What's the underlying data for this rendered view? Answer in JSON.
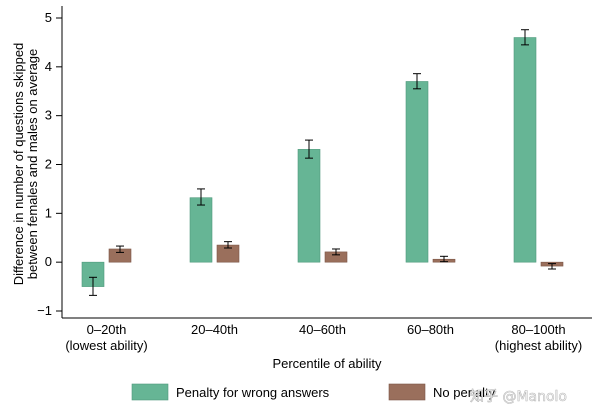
{
  "chart_data": {
    "type": "bar",
    "title": "",
    "xlabel": "Percentile of ability",
    "ylabel_lines": [
      "Difference in number of questions skipped",
      "between females and males on average"
    ],
    "categories": [
      [
        "0–20th",
        "(lowest ability)"
      ],
      [
        "20–40th"
      ],
      [
        "40–60th"
      ],
      [
        "60–80th"
      ],
      [
        "80–100th",
        "(highest ability)"
      ]
    ],
    "ylim": [
      -1,
      5
    ],
    "yticks": [
      -1,
      0,
      1,
      2,
      3,
      4,
      5
    ],
    "ytick_labels": [
      "−1",
      "0",
      "1",
      "2",
      "3",
      "4",
      "5"
    ],
    "grid": false,
    "legend_position": "bottom",
    "series": [
      {
        "name": "Penalty for wrong answers",
        "color": "#66b595",
        "values": [
          -0.5,
          1.32,
          2.31,
          3.7,
          4.6
        ],
        "error_low": [
          -0.68,
          1.17,
          2.13,
          3.55,
          4.45
        ],
        "error_high": [
          -0.31,
          1.5,
          2.5,
          3.86,
          4.76
        ]
      },
      {
        "name": "No penalty",
        "color": "#9a6f5c",
        "values": [
          0.27,
          0.35,
          0.21,
          0.06,
          -0.08
        ],
        "error_low": [
          0.2,
          0.29,
          0.15,
          0.01,
          -0.14
        ],
        "error_high": [
          0.33,
          0.42,
          0.27,
          0.12,
          -0.03
        ]
      }
    ]
  },
  "watermark": "知乎 @Manolo"
}
